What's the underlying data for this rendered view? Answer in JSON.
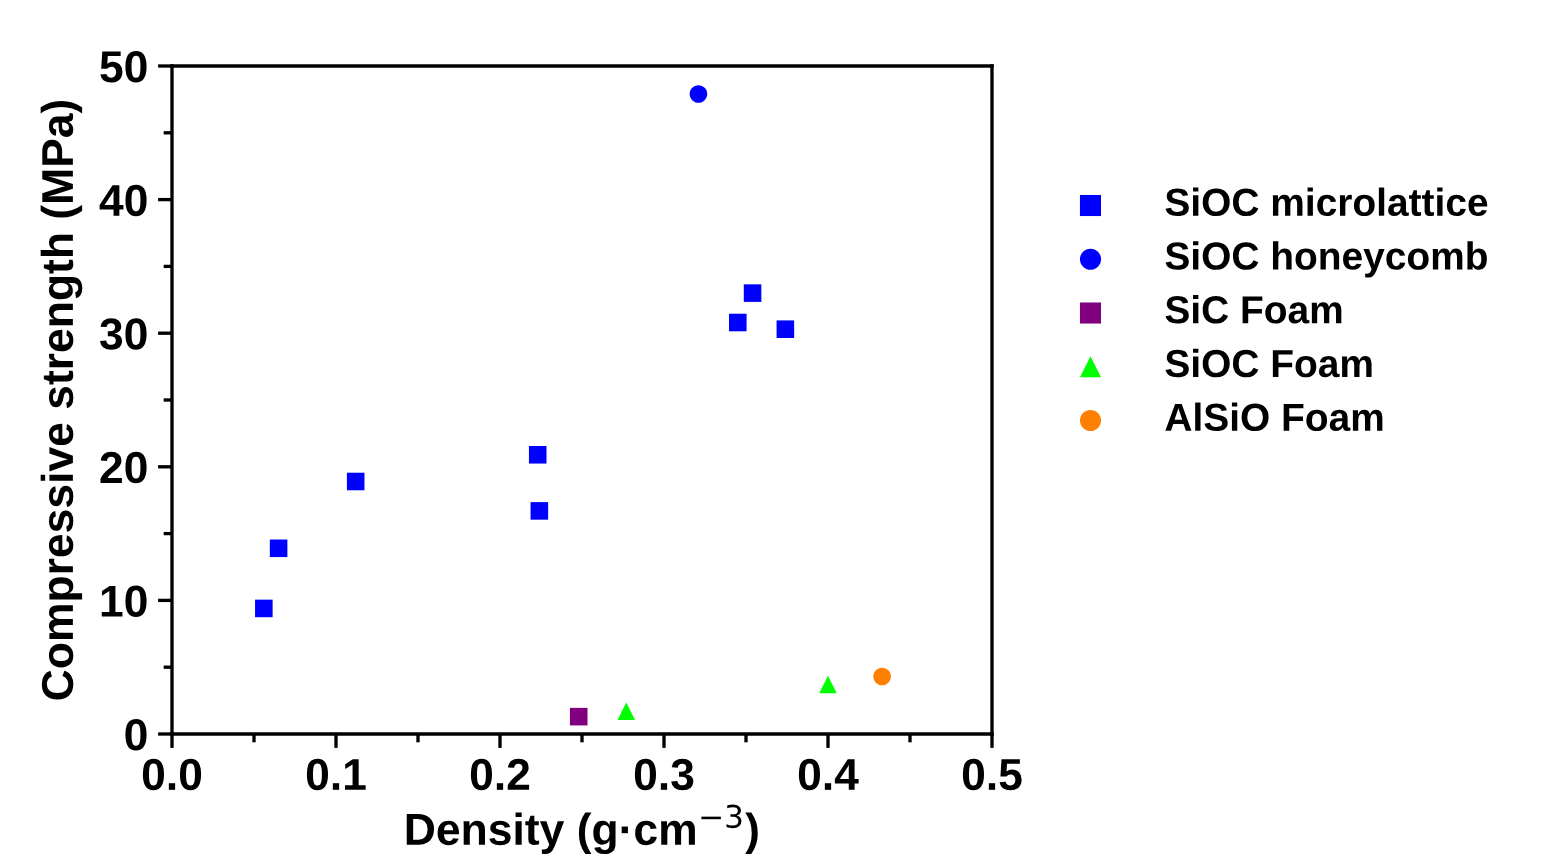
{
  "chart_data": {
    "type": "scatter",
    "xlabel": "Density (g·cm$^{−3}$)",
    "ylabel": "Compressive strength (MPa)",
    "xlim": [
      0,
      0.5
    ],
    "ylim": [
      0,
      50
    ],
    "xticks": [
      {
        "value": 0,
        "label": "0.0"
      },
      {
        "value": 0.05,
        "label": null
      },
      0.1,
      {
        "value": 0.15,
        "label": null
      },
      0.2,
      {
        "value": 0.25,
        "label": null
      },
      0.3,
      {
        "value": 0.35,
        "label": null
      },
      0.4,
      {
        "value": 0.45,
        "label": null
      },
      0.5
    ],
    "yticks": [
      0,
      {
        "value": 5,
        "label": null
      },
      10,
      {
        "value": 15,
        "label": null
      },
      20,
      {
        "value": 25,
        "label": null
      },
      30,
      {
        "value": 35,
        "label": null
      },
      40,
      {
        "value": 45,
        "label": null
      },
      50
    ],
    "grid": false,
    "legend": "right",
    "series": [
      {
        "name": "SiOC microlattice",
        "color": "#0000ff",
        "marker": "square",
        "x": [
          0.056,
          0.065,
          0.112,
          0.223,
          0.224,
          0.345,
          0.354,
          0.374
        ],
        "values": [
          9.4,
          13.9,
          18.9,
          20.9,
          16.7,
          30.8,
          33.0,
          30.3
        ]
      },
      {
        "name": "SiOC honeycomb",
        "color": "#0000ff",
        "marker": "circle",
        "x": [
          0.321
        ],
        "values": [
          47.9
        ]
      },
      {
        "name": "SiC Foam",
        "color": "#800080",
        "marker": "square",
        "x": [
          0.248
        ],
        "values": [
          1.3
        ]
      },
      {
        "name": "SiOC Foam",
        "color": "#00ff00",
        "marker": "triangle",
        "x": [
          0.277,
          0.4
        ],
        "values": [
          1.7,
          3.7
        ]
      },
      {
        "name": "AlSiO Foam",
        "color": "#ff7f00",
        "marker": "circle",
        "x": [
          0.433
        ],
        "values": [
          4.3
        ]
      }
    ]
  }
}
